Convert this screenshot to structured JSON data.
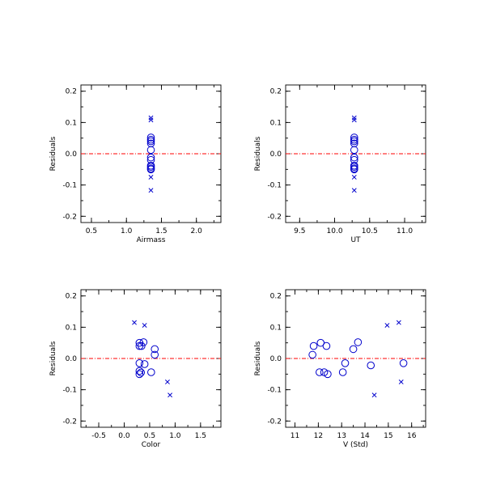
{
  "chart_data": [
    {
      "type": "scatter",
      "xlabel": "Airmass",
      "ylabel": "Residuals",
      "xlim": [
        0.35,
        2.35
      ],
      "ylim": [
        -0.22,
        0.22
      ],
      "xticks": [
        0.5,
        1.0,
        1.5,
        2.0
      ],
      "xtick_labels": [
        "0.5",
        "1.0",
        "1.5",
        "2.0"
      ],
      "yticks": [
        -0.2,
        -0.1,
        0.0,
        0.1,
        0.2
      ],
      "ytick_labels": [
        "-0.2",
        "-0.1",
        "0.0",
        "0.1",
        "0.2"
      ],
      "reference_line_y": 0.0,
      "series": [
        {
          "marker": "circle",
          "points": [
            [
              1.35,
              0.052
            ],
            [
              1.35,
              0.045
            ],
            [
              1.35,
              0.04
            ],
            [
              1.35,
              0.033
            ],
            [
              1.35,
              0.012
            ],
            [
              1.35,
              -0.012
            ],
            [
              1.35,
              -0.02
            ],
            [
              1.35,
              -0.038
            ],
            [
              1.35,
              -0.042
            ],
            [
              1.35,
              -0.047
            ],
            [
              1.35,
              -0.05
            ]
          ]
        },
        {
          "marker": "x",
          "points": [
            [
              1.35,
              0.115
            ],
            [
              1.35,
              0.108
            ],
            [
              1.35,
              -0.075
            ],
            [
              1.35,
              -0.117
            ]
          ]
        }
      ]
    },
    {
      "type": "scatter",
      "xlabel": "UT",
      "ylabel": "Residuals",
      "xlim": [
        9.3,
        11.3
      ],
      "ylim": [
        -0.22,
        0.22
      ],
      "xticks": [
        9.5,
        10.0,
        10.5,
        11.0
      ],
      "xtick_labels": [
        "9.5",
        "10.0",
        "10.5",
        "11.0"
      ],
      "yticks": [
        -0.2,
        -0.1,
        0.0,
        0.1,
        0.2
      ],
      "ytick_labels": [
        "-0.2",
        "-0.1",
        "0.0",
        "0.1",
        "0.2"
      ],
      "reference_line_y": 0.0,
      "series": [
        {
          "marker": "circle",
          "points": [
            [
              10.28,
              0.052
            ],
            [
              10.28,
              0.045
            ],
            [
              10.28,
              0.04
            ],
            [
              10.28,
              0.033
            ],
            [
              10.28,
              0.012
            ],
            [
              10.28,
              -0.012
            ],
            [
              10.28,
              -0.02
            ],
            [
              10.28,
              -0.038
            ],
            [
              10.28,
              -0.042
            ],
            [
              10.28,
              -0.047
            ],
            [
              10.28,
              -0.05
            ]
          ]
        },
        {
          "marker": "x",
          "points": [
            [
              10.28,
              0.115
            ],
            [
              10.28,
              0.108
            ],
            [
              10.28,
              -0.075
            ],
            [
              10.28,
              -0.117
            ]
          ]
        }
      ]
    },
    {
      "type": "scatter",
      "xlabel": "Color",
      "ylabel": "Residuals",
      "xlim": [
        -0.85,
        1.9
      ],
      "ylim": [
        -0.22,
        0.22
      ],
      "xticks": [
        -0.5,
        0.0,
        0.5,
        1.0,
        1.5
      ],
      "xtick_labels": [
        "-0.5",
        "0.0",
        "0.5",
        "1.0",
        "1.5"
      ],
      "yticks": [
        -0.2,
        -0.1,
        0.0,
        0.1,
        0.2
      ],
      "ytick_labels": [
        "-0.2",
        "-0.1",
        "0.0",
        "0.1",
        "0.2"
      ],
      "reference_line_y": 0.0,
      "series": [
        {
          "marker": "circle",
          "points": [
            [
              0.3,
              0.05
            ],
            [
              0.3,
              0.04
            ],
            [
              0.38,
              0.052
            ],
            [
              0.34,
              0.04
            ],
            [
              0.6,
              0.03
            ],
            [
              0.6,
              0.012
            ],
            [
              0.3,
              -0.015
            ],
            [
              0.4,
              -0.018
            ],
            [
              0.3,
              -0.04
            ],
            [
              0.33,
              -0.045
            ],
            [
              0.3,
              -0.05
            ],
            [
              0.53,
              -0.044
            ]
          ]
        },
        {
          "marker": "x",
          "points": [
            [
              0.2,
              0.115
            ],
            [
              0.4,
              0.106
            ],
            [
              0.85,
              -0.075
            ],
            [
              0.9,
              -0.117
            ]
          ]
        }
      ]
    },
    {
      "type": "scatter",
      "xlabel": "V (Std)",
      "ylabel": "Residuals",
      "xlim": [
        10.6,
        16.6
      ],
      "ylim": [
        -0.22,
        0.22
      ],
      "xticks": [
        11,
        12,
        13,
        14,
        15,
        16
      ],
      "xtick_labels": [
        "11",
        "12",
        "13",
        "14",
        "15",
        "16"
      ],
      "yticks": [
        -0.2,
        -0.1,
        0.0,
        0.1,
        0.2
      ],
      "ytick_labels": [
        "-0.2",
        "-0.1",
        "0.0",
        "0.1",
        "0.2"
      ],
      "reference_line_y": 0.0,
      "series": [
        {
          "marker": "circle",
          "points": [
            [
              11.75,
              0.012
            ],
            [
              11.8,
              0.04
            ],
            [
              12.1,
              0.05
            ],
            [
              12.35,
              0.04
            ],
            [
              12.05,
              -0.044
            ],
            [
              12.25,
              -0.044
            ],
            [
              12.4,
              -0.05
            ],
            [
              13.05,
              -0.044
            ],
            [
              13.15,
              -0.015
            ],
            [
              13.5,
              0.03
            ],
            [
              13.7,
              0.052
            ],
            [
              14.25,
              -0.022
            ],
            [
              15.65,
              -0.015
            ]
          ]
        },
        {
          "marker": "x",
          "points": [
            [
              14.4,
              -0.117
            ],
            [
              14.95,
              0.106
            ],
            [
              15.45,
              0.115
            ],
            [
              15.55,
              -0.075
            ]
          ]
        }
      ]
    }
  ]
}
